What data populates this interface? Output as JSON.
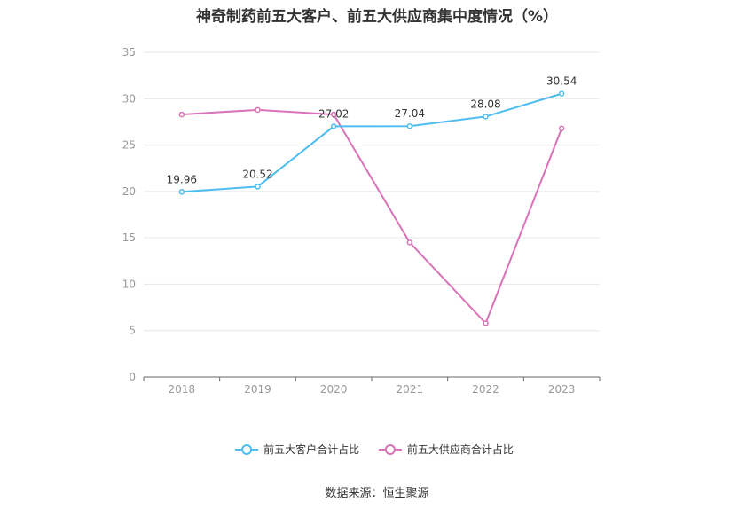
{
  "title": "神奇制药前五大客户、前五大供应商集中度情况（%）",
  "source": "数据来源：恒生聚源",
  "chart_data": {
    "type": "line",
    "title": "神奇制药前五大客户、前五大供应商集中度情况（%）",
    "categories": [
      "2018",
      "2019",
      "2020",
      "2021",
      "2022",
      "2023"
    ],
    "ylim": [
      0,
      35
    ],
    "yticks": [
      0,
      5,
      10,
      15,
      20,
      25,
      30,
      35
    ],
    "grid": true,
    "legend_position": "bottom",
    "series": [
      {
        "name": "前五大客户合计占比",
        "color": "#4dbdf0",
        "values": [
          19.96,
          20.52,
          27.02,
          27.04,
          28.08,
          30.54
        ],
        "labels": [
          "19.96",
          "20.52",
          "27.02",
          "27.04",
          "28.08",
          "30.54"
        ]
      },
      {
        "name": "前五大供应商合计占比",
        "color": "#d972b8",
        "values": [
          28.3,
          28.8,
          28.3,
          14.5,
          5.8,
          26.8
        ]
      }
    ]
  }
}
